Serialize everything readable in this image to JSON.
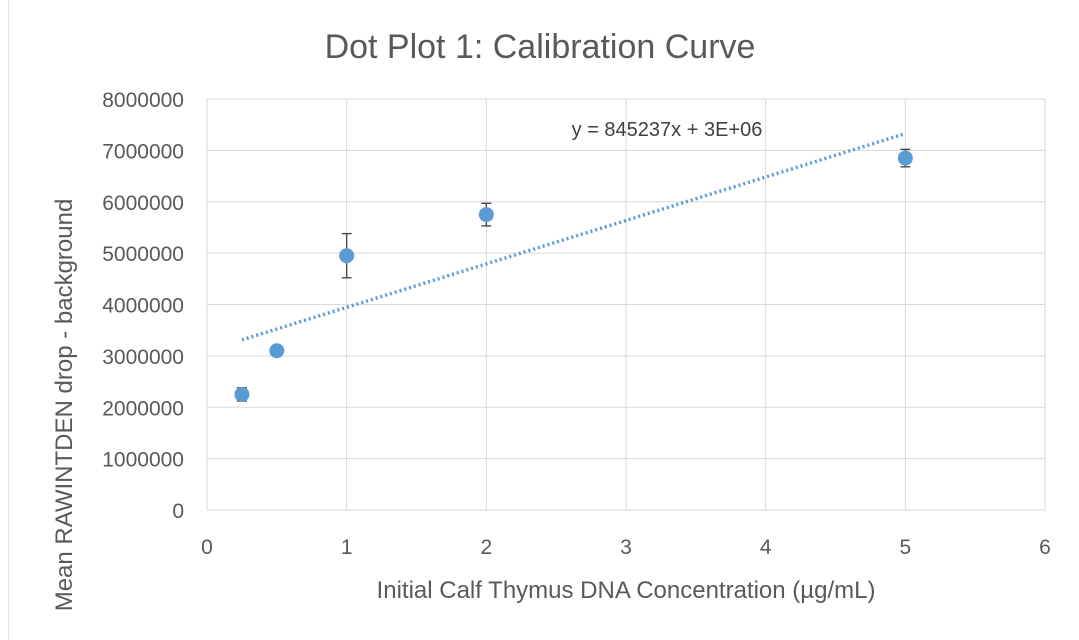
{
  "chart_data": {
    "type": "scatter",
    "title": "Dot Plot 1: Calibration Curve",
    "xlabel": "Initial Calf Thymus DNA Concentration (µg/mL)",
    "ylabel": "Mean RAWINTDEN drop - background",
    "xlim": [
      0,
      6
    ],
    "ylim": [
      0,
      8000000
    ],
    "x_ticks": [
      "0",
      "1",
      "2",
      "3",
      "4",
      "5",
      "6"
    ],
    "y_ticks": [
      "0",
      "1000000",
      "2000000",
      "3000000",
      "4000000",
      "5000000",
      "6000000",
      "7000000",
      "8000000"
    ],
    "grid": true,
    "series": [
      {
        "x": [
          0.25,
          0.5,
          1,
          2,
          5
        ],
        "y": [
          2250000,
          3100000,
          4950000,
          5750000,
          6850000
        ],
        "error": [
          130000,
          70000,
          430000,
          220000,
          170000
        ],
        "color": "#5B9BD5"
      }
    ],
    "trendline": {
      "type": "linear",
      "slope": 845237,
      "intercept": 3100000,
      "x_range": [
        0.25,
        5
      ],
      "equation_label": "y = 845237x + 3E+06",
      "color": "#5B9BD5",
      "style": "dotted"
    }
  }
}
